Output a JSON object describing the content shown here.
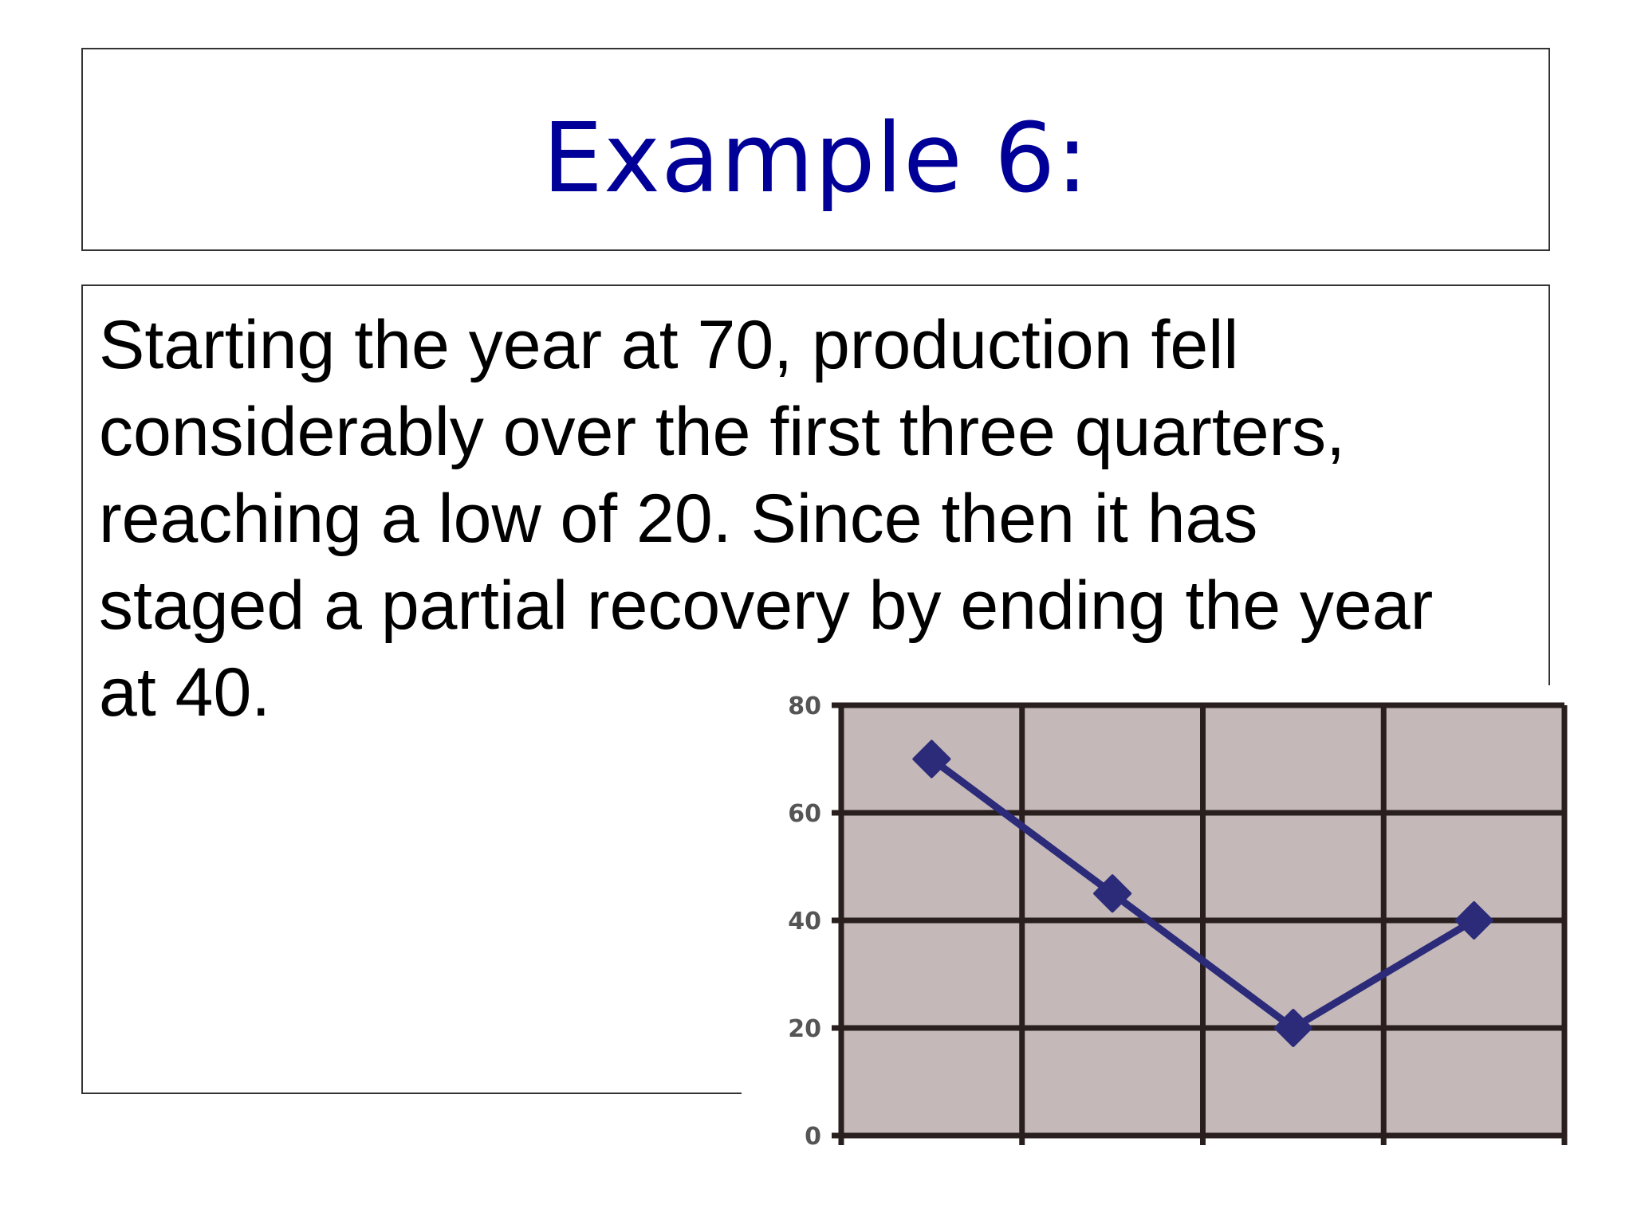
{
  "slide": {
    "title": "Example 6:",
    "body_lines": [
      "Starting the year at 70, production fell",
      "considerably over the first three quarters,",
      "reaching a low of 20. Since then it has",
      "staged a partial recovery by ending the year",
      "at 40."
    ]
  },
  "chart_data": {
    "type": "line",
    "title": "",
    "xlabel": "",
    "ylabel": "",
    "categories": [
      "",
      "",
      "",
      ""
    ],
    "series": [
      {
        "values": [
          70,
          45,
          20,
          40
        ]
      }
    ],
    "ylim": [
      0,
      80
    ],
    "yticks": [
      "0",
      "20",
      "40",
      "60",
      "80"
    ],
    "grid": true,
    "legend": "none",
    "colors": {
      "plot_background": "#c4b8b8",
      "grid": "#2a1f1f",
      "line": "#2b2b7a",
      "marker": "#2b2b7a",
      "tick_label": "#555555"
    }
  }
}
